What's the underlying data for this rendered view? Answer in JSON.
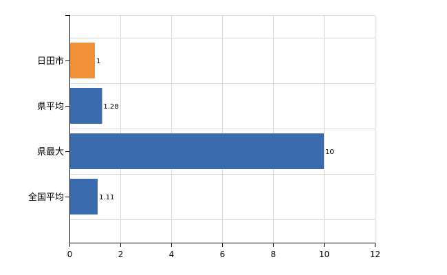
{
  "chart_data": {
    "type": "bar",
    "orientation": "horizontal",
    "categories": [
      "日田市",
      "県平均",
      "県最大",
      "全国平均"
    ],
    "values": [
      1,
      1.28,
      10,
      1.11
    ],
    "data_labels": [
      "1",
      "1.28",
      "10",
      "1.11"
    ],
    "bar_colors": [
      "#F0913A",
      "#3A6BAE",
      "#3A6BAE",
      "#3A6BAE"
    ],
    "xlim": [
      0,
      12
    ],
    "x_ticks": [
      0,
      2,
      4,
      6,
      8,
      10,
      12
    ],
    "x_tick_labels": [
      "0",
      "2",
      "4",
      "6",
      "8",
      "10",
      "12"
    ],
    "grid": true,
    "title": "",
    "xlabel": "",
    "ylabel": ""
  }
}
